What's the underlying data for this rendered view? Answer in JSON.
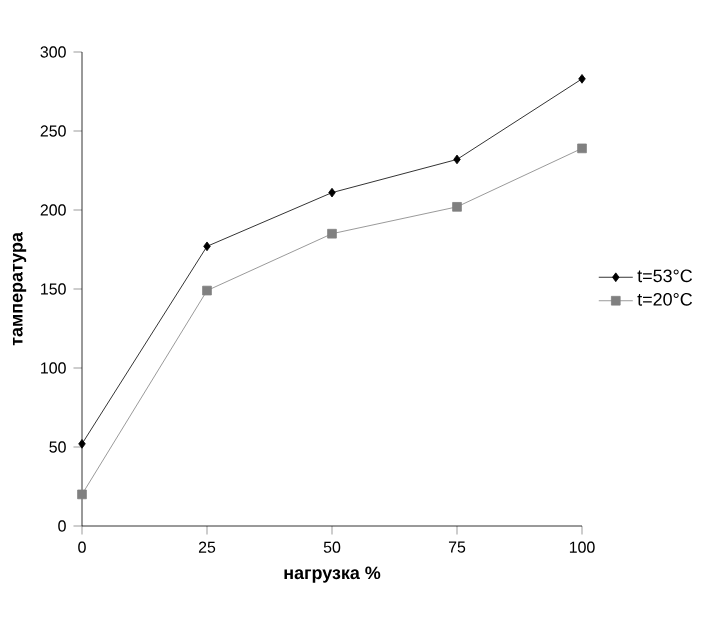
{
  "chart_data": {
    "type": "line",
    "xlabel": "нагрузка %",
    "ylabel": "тампература",
    "x": [
      0,
      25,
      50,
      75,
      100
    ],
    "series": [
      {
        "name": "t=53°C",
        "color": "#000000",
        "marker": "diamond",
        "values": [
          52,
          177,
          211,
          232,
          283
        ]
      },
      {
        "name": "t=20°C",
        "color": "#808080",
        "marker": "square",
        "values": [
          20,
          149,
          185,
          202,
          239
        ]
      }
    ],
    "xlim": [
      0,
      100
    ],
    "xticks": [
      0,
      25,
      50,
      75,
      100
    ],
    "ylim": [
      0,
      300
    ],
    "yticks": [
      0,
      50,
      100,
      150,
      200,
      250,
      300
    ],
    "grid": false,
    "legend": "right",
    "line_style": "solid"
  }
}
